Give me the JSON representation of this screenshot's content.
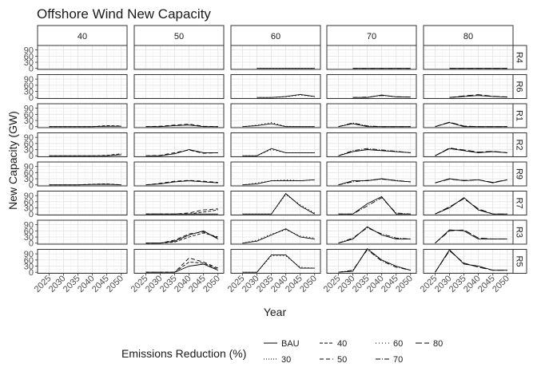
{
  "chart_data": {
    "type": "line",
    "title": "Offshore Wind New Capacity",
    "xlabel": "Year",
    "ylabel": "New Capacity (GW)",
    "facet_columns": [
      "40",
      "50",
      "60",
      "70",
      "80"
    ],
    "facet_rows": [
      "R4",
      "R6",
      "R1",
      "R2",
      "R9",
      "R7",
      "R3",
      "R5"
    ],
    "x_ticks": [
      2025,
      2030,
      2035,
      2040,
      2045,
      2050
    ],
    "y_ticks": [
      0,
      30,
      60,
      90
    ],
    "xlim": [
      2021,
      2052
    ],
    "ylim": [
      -5,
      112
    ],
    "grid": true,
    "legend": {
      "title": "Emissions Reduction (%)",
      "position": "bottom",
      "entries": [
        {
          "name": "BAU",
          "dash": "solid"
        },
        {
          "name": "30",
          "dash": "1,2"
        },
        {
          "name": "40",
          "dash": "4,2"
        },
        {
          "name": "50",
          "dash": "5,3"
        },
        {
          "name": "60",
          "dash": "1,3"
        },
        {
          "name": "70",
          "dash": "6,2,1,2"
        },
        {
          "name": "80",
          "dash": "8,3"
        }
      ]
    },
    "x": [
      2025,
      2030,
      2035,
      2040,
      2045,
      2050
    ],
    "panels": [
      {
        "row": "R4",
        "col": "40",
        "series": []
      },
      {
        "row": "R4",
        "col": "50",
        "series": []
      },
      {
        "row": "R4",
        "col": "60",
        "series": [
          {
            "name": "BAU",
            "values": [
              null,
              0,
              0,
              0,
              0,
              0
            ]
          },
          {
            "name": "60",
            "values": [
              null,
              0,
              0,
              0,
              0,
              0
            ]
          }
        ]
      },
      {
        "row": "R4",
        "col": "70",
        "series": [
          {
            "name": "BAU",
            "values": [
              null,
              0,
              0,
              0,
              0,
              0
            ]
          },
          {
            "name": "70",
            "values": [
              null,
              0,
              0,
              0,
              0,
              0
            ]
          }
        ]
      },
      {
        "row": "R4",
        "col": "80",
        "series": [
          {
            "name": "BAU",
            "values": [
              null,
              0,
              0,
              0,
              0,
              0
            ]
          },
          {
            "name": "80",
            "values": [
              null,
              0,
              0,
              0,
              0,
              0
            ]
          }
        ]
      },
      {
        "row": "R6",
        "col": "40",
        "series": []
      },
      {
        "row": "R6",
        "col": "50",
        "series": []
      },
      {
        "row": "R6",
        "col": "60",
        "series": [
          {
            "name": "BAU",
            "values": [
              null,
              0,
              0,
              5,
              15,
              5
            ]
          },
          {
            "name": "60",
            "values": [
              null,
              0,
              0,
              3,
              12,
              4
            ]
          }
        ]
      },
      {
        "row": "R6",
        "col": "70",
        "series": [
          {
            "name": "BAU",
            "values": [
              null,
              0,
              0,
              12,
              3,
              2
            ]
          },
          {
            "name": "70",
            "values": [
              null,
              0,
              2,
              10,
              4,
              2
            ]
          }
        ]
      },
      {
        "row": "R6",
        "col": "80",
        "series": [
          {
            "name": "BAU",
            "values": [
              null,
              0,
              5,
              10,
              5,
              2
            ]
          },
          {
            "name": "80",
            "values": [
              null,
              0,
              8,
              14,
              6,
              3
            ]
          }
        ]
      },
      {
        "row": "R1",
        "col": "40",
        "series": [
          {
            "name": "BAU",
            "values": [
              0,
              0,
              0,
              0,
              2,
              2
            ]
          },
          {
            "name": "40",
            "values": [
              0,
              0,
              0,
              0,
              5,
              3
            ]
          }
        ]
      },
      {
        "row": "R1",
        "col": "50",
        "series": [
          {
            "name": "BAU",
            "values": [
              0,
              0,
              5,
              8,
              0,
              0
            ]
          },
          {
            "name": "50",
            "values": [
              0,
              2,
              8,
              12,
              2,
              0
            ]
          }
        ]
      },
      {
        "row": "R1",
        "col": "60",
        "series": [
          {
            "name": "BAU",
            "values": [
              0,
              5,
              15,
              0,
              0,
              0
            ]
          },
          {
            "name": "60",
            "values": [
              0,
              8,
              20,
              2,
              0,
              0
            ]
          }
        ]
      },
      {
        "row": "R1",
        "col": "70",
        "series": [
          {
            "name": "BAU",
            "values": [
              0,
              15,
              0,
              0,
              0,
              0
            ]
          },
          {
            "name": "70",
            "values": [
              0,
              18,
              4,
              0,
              0,
              0
            ]
          }
        ]
      },
      {
        "row": "R1",
        "col": "80",
        "series": [
          {
            "name": "BAU",
            "values": [
              0,
              20,
              0,
              0,
              0,
              0
            ]
          },
          {
            "name": "80",
            "values": [
              0,
              22,
              3,
              0,
              0,
              0
            ]
          }
        ]
      },
      {
        "row": "R2",
        "col": "40",
        "series": [
          {
            "name": "BAU",
            "values": [
              0,
              0,
              0,
              0,
              0,
              5
            ]
          },
          {
            "name": "40",
            "values": [
              0,
              0,
              0,
              0,
              2,
              10
            ]
          }
        ]
      },
      {
        "row": "R2",
        "col": "50",
        "series": [
          {
            "name": "BAU",
            "values": [
              0,
              0,
              10,
              30,
              15,
              15
            ]
          },
          {
            "name": "50",
            "values": [
              0,
              2,
              15,
              28,
              12,
              15
            ]
          }
        ]
      },
      {
        "row": "R2",
        "col": "60",
        "series": [
          {
            "name": "BAU",
            "values": [
              0,
              0,
              35,
              15,
              15,
              15
            ]
          },
          {
            "name": "60",
            "values": [
              0,
              0,
              30,
              15,
              15,
              15
            ]
          }
        ]
      },
      {
        "row": "R2",
        "col": "70",
        "series": [
          {
            "name": "BAU",
            "values": [
              0,
              20,
              30,
              25,
              20,
              15
            ]
          },
          {
            "name": "70",
            "values": [
              0,
              25,
              35,
              28,
              22,
              15
            ]
          }
        ]
      },
      {
        "row": "R2",
        "col": "80",
        "series": [
          {
            "name": "BAU",
            "values": [
              0,
              35,
              25,
              15,
              20,
              15
            ]
          },
          {
            "name": "80",
            "values": [
              0,
              38,
              28,
              18,
              22,
              15
            ]
          }
        ]
      },
      {
        "row": "R9",
        "col": "40",
        "series": [
          {
            "name": "BAU",
            "values": [
              0,
              0,
              0,
              2,
              3,
              0
            ]
          },
          {
            "name": "40",
            "values": [
              0,
              0,
              0,
              3,
              5,
              0
            ]
          }
        ]
      },
      {
        "row": "R9",
        "col": "50",
        "series": [
          {
            "name": "BAU",
            "values": [
              0,
              5,
              15,
              20,
              15,
              10
            ]
          },
          {
            "name": "50",
            "values": [
              0,
              8,
              18,
              22,
              18,
              12
            ]
          }
        ]
      },
      {
        "row": "R9",
        "col": "60",
        "series": [
          {
            "name": "BAU",
            "values": [
              0,
              5,
              20,
              20,
              20,
              25
            ]
          },
          {
            "name": "60",
            "values": [
              0,
              10,
              20,
              25,
              20,
              25
            ]
          }
        ]
      },
      {
        "row": "R9",
        "col": "70",
        "series": [
          {
            "name": "BAU",
            "values": [
              0,
              20,
              20,
              30,
              20,
              15
            ]
          },
          {
            "name": "70",
            "values": [
              0,
              15,
              22,
              28,
              22,
              15
            ]
          }
        ]
      },
      {
        "row": "R9",
        "col": "80",
        "series": [
          {
            "name": "BAU",
            "values": [
              10,
              30,
              20,
              25,
              10,
              25
            ]
          },
          {
            "name": "80",
            "values": [
              10,
              28,
              22,
              25,
              12,
              25
            ]
          }
        ]
      },
      {
        "row": "R7",
        "col": "40",
        "series": []
      },
      {
        "row": "R7",
        "col": "50",
        "series": [
          {
            "name": "BAU",
            "values": [
              0,
              0,
              0,
              0,
              0,
              0
            ]
          },
          {
            "name": "50",
            "values": [
              0,
              0,
              0,
              5,
              20,
              25
            ]
          },
          {
            "name": "40",
            "values": [
              0,
              0,
              0,
              0,
              10,
              20
            ]
          }
        ]
      },
      {
        "row": "R7",
        "col": "60",
        "series": [
          {
            "name": "BAU",
            "values": [
              0,
              0,
              0,
              100,
              40,
              0
            ]
          },
          {
            "name": "60",
            "values": [
              0,
              0,
              0,
              95,
              45,
              5
            ]
          }
        ]
      },
      {
        "row": "R7",
        "col": "70",
        "series": [
          {
            "name": "BAU",
            "values": [
              0,
              0,
              50,
              85,
              0,
              0
            ]
          },
          {
            "name": "70",
            "values": [
              0,
              0,
              40,
              80,
              5,
              0
            ]
          }
        ]
      },
      {
        "row": "R7",
        "col": "80",
        "series": [
          {
            "name": "BAU",
            "values": [
              0,
              30,
              80,
              20,
              0,
              0
            ]
          },
          {
            "name": "80",
            "values": [
              0,
              35,
              75,
              25,
              0,
              0
            ]
          }
        ]
      },
      {
        "row": "R3",
        "col": "40",
        "series": []
      },
      {
        "row": "R3",
        "col": "50",
        "series": [
          {
            "name": "BAU",
            "values": [
              0,
              0,
              10,
              40,
              60,
              20
            ]
          },
          {
            "name": "50",
            "values": [
              0,
              0,
              15,
              45,
              55,
              25
            ]
          },
          {
            "name": "40",
            "values": [
              0,
              0,
              5,
              30,
              50,
              30
            ]
          }
        ]
      },
      {
        "row": "R3",
        "col": "60",
        "series": [
          {
            "name": "BAU",
            "values": [
              0,
              10,
              40,
              70,
              30,
              20
            ]
          },
          {
            "name": "60",
            "values": [
              0,
              15,
              45,
              65,
              35,
              25
            ]
          }
        ]
      },
      {
        "row": "R3",
        "col": "70",
        "series": [
          {
            "name": "BAU",
            "values": [
              0,
              20,
              80,
              40,
              20,
              20
            ]
          },
          {
            "name": "70",
            "values": [
              0,
              25,
              75,
              45,
              25,
              20
            ]
          }
        ]
      },
      {
        "row": "R3",
        "col": "80",
        "series": [
          {
            "name": "BAU",
            "values": [
              0,
              65,
              60,
              20,
              20,
              20
            ]
          },
          {
            "name": "80",
            "values": [
              0,
              60,
              65,
              25,
              20,
              20
            ]
          }
        ]
      },
      {
        "row": "R5",
        "col": "40",
        "series": []
      },
      {
        "row": "R5",
        "col": "50",
        "series": [
          {
            "name": "BAU",
            "values": [
              0,
              0,
              0,
              30,
              40,
              10
            ]
          },
          {
            "name": "50",
            "values": [
              0,
              0,
              0,
              70,
              50,
              20
            ]
          },
          {
            "name": "40",
            "values": [
              0,
              0,
              0,
              50,
              45,
              15
            ]
          }
        ]
      },
      {
        "row": "R5",
        "col": "60",
        "series": [
          {
            "name": "BAU",
            "values": [
              0,
              0,
              85,
              85,
              20,
              20
            ]
          },
          {
            "name": "60",
            "values": [
              0,
              0,
              80,
              80,
              25,
              20
            ]
          }
        ]
      },
      {
        "row": "R5",
        "col": "70",
        "series": [
          {
            "name": "BAU",
            "values": [
              0,
              5,
              115,
              60,
              30,
              10
            ]
          },
          {
            "name": "70",
            "values": [
              0,
              10,
              110,
              55,
              25,
              10
            ]
          }
        ]
      },
      {
        "row": "R5",
        "col": "80",
        "series": [
          {
            "name": "BAU",
            "values": [
              0,
              110,
              40,
              30,
              10,
              10
            ]
          },
          {
            "name": "80",
            "values": [
              0,
              105,
              45,
              25,
              10,
              10
            ]
          }
        ]
      }
    ]
  }
}
